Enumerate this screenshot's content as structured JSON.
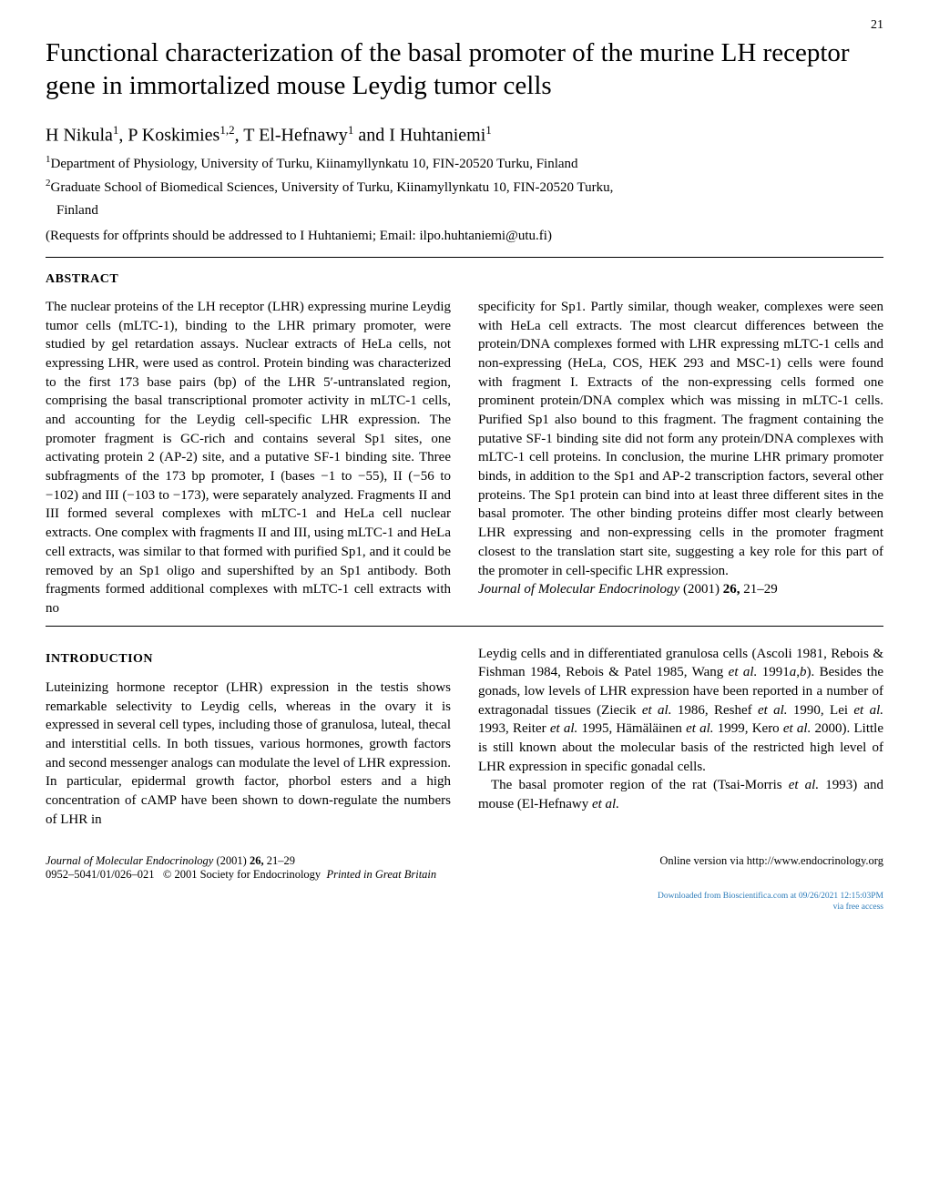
{
  "page_number": "21",
  "title": "Functional characterization of the basal promoter of the murine LH receptor gene in immortalized mouse Leydig tumor cells",
  "authors_html": "H Nikula<sup>1</sup>, P Koskimies<sup>1,2</sup>, T El-Hefnawy<sup>1</sup> and I Huhtaniemi<sup>1</sup>",
  "affiliations": {
    "a1": "<sup>1</sup>Department of Physiology, University of Turku, Kiinamyllynkatu 10, FIN-20520 Turku, Finland",
    "a2_line1": "<sup>2</sup>Graduate School of Biomedical Sciences, University of Turku, Kiinamyllynkatu 10, FIN-20520 Turku,",
    "a2_line2": "Finland"
  },
  "requests": "(Requests for offprints should be addressed to I Huhtaniemi; Email: ilpo.huhtaniemi@utu.fi)",
  "abstract_head": "ABSTRACT",
  "abstract": {
    "left": "The nuclear proteins of the LH receptor (LHR) expressing murine Leydig tumor cells (mLTC-1), binding to the LHR primary promoter, were studied by gel retardation assays. Nuclear extracts of HeLa cells, not expressing LHR, were used as control. Protein binding was characterized to the first 173 base pairs (bp) of the LHR 5′-untranslated region, comprising the basal transcriptional promoter activity in mLTC-1 cells, and accounting for the Leydig cell-specific LHR expression. The promoter fragment is GC-rich and contains several Sp1 sites, one activating protein 2 (AP-2) site, and a putative SF-1 binding site. Three subfragments of the 173 bp promoter, I (bases −1 to −55), II (−56 to −102) and III (−103 to −173), were separately analyzed. Fragments II and III formed several complexes with mLTC-1 and HeLa cell nuclear extracts. One complex with fragments II and III, using mLTC-1 and HeLa cell extracts, was similar to that formed with purified Sp1, and it could be removed by an Sp1 oligo and supershifted by an Sp1 antibody. Both fragments formed additional complexes with mLTC-1 cell extracts with no",
    "right": "specificity for Sp1. Partly similar, though weaker, complexes were seen with HeLa cell extracts. The most clearcut differences between the protein/DNA complexes formed with LHR expressing mLTC-1 cells and non-expressing (HeLa, COS, HEK 293 and MSC-1) cells were found with fragment I. Extracts of the non-expressing cells formed one prominent protein/DNA complex which was missing in mLTC-1 cells. Purified Sp1 also bound to this fragment. The fragment containing the putative SF-1 binding site did not form any protein/DNA complexes with mLTC-1 cell proteins. In conclusion, the murine LHR primary promoter binds, in addition to the Sp1 and AP-2 transcription factors, several other proteins. The Sp1 protein can bind into at least three different sites in the basal promoter. The other binding proteins differ most clearly between LHR expressing and non-expressing cells in the promoter fragment closest to the translation start site, suggesting a key role for this part of the promoter in cell-specific LHR expression.",
    "journal_ref": "Journal of Molecular Endocrinology",
    "journal_cite": " (2001) <b>26,</b> 21–29"
  },
  "intro_head": "INTRODUCTION",
  "intro": {
    "left": "Luteinizing hormone receptor (LHR) expression in the testis shows remarkable selectivity to Leydig cells, whereas in the ovary it is expressed in several cell types, including those of granulosa, luteal, thecal and interstitial cells. In both tissues, various hormones, growth factors and second messenger analogs can modulate the level of LHR expression. In particular, epidermal growth factor, phorbol esters and a high concentration of cAMP have been shown to down-regulate the numbers of LHR in",
    "right_p1": "Leydig cells and in differentiated granulosa cells (Ascoli 1981, Rebois & Fishman 1984, Rebois & Patel 1985, Wang <span class=\"ital\">et al.</span> 1991<span class=\"ital\">a</span>,<span class=\"ital\">b</span>). Besides the gonads, low levels of LHR expression have been reported in a number of extragonadal tissues (Ziecik <span class=\"ital\">et al.</span> 1986, Reshef <span class=\"ital\">et al.</span> 1990, Lei <span class=\"ital\">et al.</span> 1993, Reiter <span class=\"ital\">et al.</span> 1995, Hämäläinen <span class=\"ital\">et al.</span> 1999, Kero <span class=\"ital\">et al.</span> 2000). Little is still known about the molecular basis of the restricted high level of LHR expression in specific gonadal cells.",
    "right_p2": "The basal promoter region of the rat (Tsai-Morris <span class=\"ital\">et al.</span> 1993) and mouse (El-Hefnawy <span class=\"ital\">et al.</span>"
  },
  "footer": {
    "left_line1_jrnl": "Journal of Molecular Endocrinology",
    "left_line1_rest": " (2001) <b>26,</b> 21–29",
    "left_line2": "0952–5041/01/026–021 &nbsp; © 2001 Society for Endocrinology &nbsp;<span class=\"ital\">Printed in Great Britain</span>",
    "right": "Online version via http://www.endocrinology.org"
  },
  "download": {
    "line1": "Downloaded from Bioscientifica.com at 09/26/2021 12:15:03PM",
    "line2": "via free access"
  },
  "colors": {
    "text": "#000000",
    "bg": "#ffffff",
    "link_blue": "#2b7bb9"
  }
}
